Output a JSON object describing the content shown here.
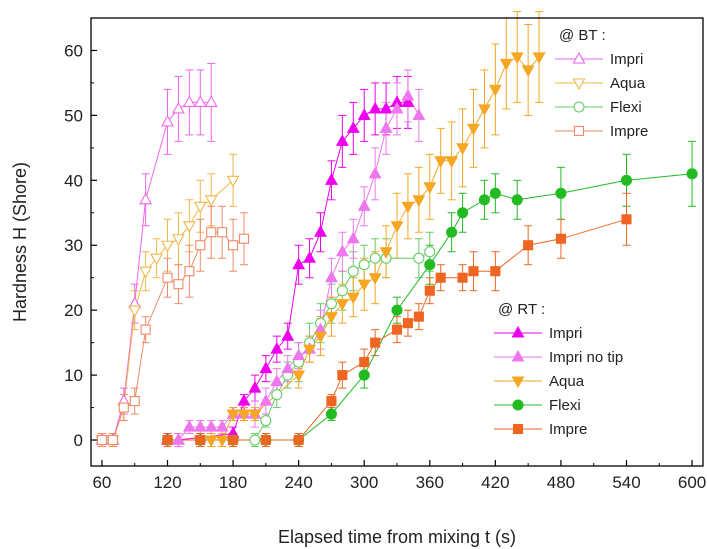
{
  "chart_data": {
    "type": "scatter",
    "xlabel": "Elapsed time from mixing t (s)",
    "ylabel": "Hardness H (Shore)",
    "xlim": [
      50,
      610
    ],
    "ylim": [
      -4,
      65
    ],
    "xticks": [
      60,
      120,
      180,
      240,
      300,
      360,
      420,
      480,
      540,
      600
    ],
    "yticks": [
      0,
      10,
      20,
      30,
      40,
      50,
      60
    ],
    "grid": false,
    "legends": [
      {
        "title": "@ BT :",
        "placement": "top-right",
        "entries": [
          "Impri",
          "Aqua",
          "Flexi",
          "Impre"
        ]
      },
      {
        "title": "@ RT :",
        "placement": "bottom-right",
        "entries": [
          "Impri",
          "Impri no tip",
          "Aqua",
          "Flexi",
          "Impre"
        ]
      }
    ],
    "series": [
      {
        "name": "Impri",
        "group": "@ BT :",
        "color": "#ee66ee",
        "marker": "triangle-up",
        "filled": false,
        "x": [
          60,
          70,
          80,
          90,
          100,
          120,
          130,
          140,
          150,
          160
        ],
        "y": [
          0,
          0,
          6,
          21,
          37,
          49,
          51,
          52,
          52,
          52
        ],
        "err": [
          1,
          1,
          2,
          3,
          4,
          5,
          5,
          5,
          5,
          6
        ]
      },
      {
        "name": "Aqua",
        "group": "@ BT :",
        "color": "#f0b84a",
        "marker": "triangle-down",
        "filled": false,
        "x": [
          60,
          70,
          80,
          90,
          100,
          110,
          120,
          130,
          140,
          150,
          160,
          180
        ],
        "y": [
          0,
          0,
          5,
          20,
          26,
          28,
          30,
          31,
          33,
          36,
          37,
          40
        ],
        "err": [
          1,
          1,
          2,
          3,
          3,
          3,
          4,
          4,
          4,
          4,
          4,
          4
        ]
      },
      {
        "name": "Flexi",
        "group": "@ BT :",
        "color": "#66cc66",
        "marker": "circle",
        "filled": false,
        "x": [
          200,
          210,
          220,
          230,
          240,
          250,
          260,
          270,
          280,
          290,
          300,
          310,
          320,
          350,
          360
        ],
        "y": [
          0,
          3,
          7,
          10,
          12,
          15,
          18,
          21,
          23,
          26,
          27,
          28,
          28,
          28,
          29
        ],
        "err": [
          1,
          1,
          2,
          2,
          3,
          3,
          3,
          3,
          3,
          3,
          3,
          3,
          3,
          3,
          3
        ]
      },
      {
        "name": "Impre",
        "group": "@ BT :",
        "color": "#f08a66",
        "marker": "square",
        "filled": false,
        "x": [
          60,
          70,
          80,
          90,
          100,
          120,
          130,
          140,
          150,
          160,
          170,
          180,
          190
        ],
        "y": [
          0,
          0,
          5,
          6,
          17,
          25,
          24,
          26,
          30,
          32,
          32,
          30,
          31
        ],
        "err": [
          1,
          1,
          2,
          2,
          2,
          3,
          3,
          4,
          4,
          4,
          4,
          4,
          4
        ]
      },
      {
        "name": "Impri",
        "group": "@ RT :",
        "color": "#ee00ee",
        "marker": "triangle-up",
        "filled": true,
        "x": [
          120,
          130,
          180,
          190,
          200,
          210,
          220,
          230,
          240,
          250,
          260,
          270,
          280,
          290,
          300,
          310,
          320,
          330,
          340
        ],
        "y": [
          0,
          0,
          1,
          6,
          8,
          11,
          14,
          16,
          27,
          28,
          32,
          40,
          46,
          48,
          50,
          51,
          51,
          52,
          52
        ],
        "err": [
          1,
          1,
          1,
          1,
          2,
          2,
          2,
          2,
          3,
          3,
          3,
          3,
          4,
          4,
          4,
          4,
          4,
          4,
          4
        ]
      },
      {
        "name": "Impri no tip",
        "group": "@ RT :",
        "color": "#ee77ee",
        "marker": "triangle-up",
        "filled": true,
        "x": [
          130,
          140,
          150,
          160,
          170,
          180,
          190,
          200,
          210,
          220,
          230,
          240,
          250,
          260,
          270,
          280,
          290,
          300,
          310,
          320,
          330,
          340,
          350
        ],
        "y": [
          0,
          2,
          2,
          2,
          2,
          4,
          4,
          4,
          6,
          9,
          11,
          13,
          14,
          17,
          25,
          29,
          31,
          36,
          41,
          48,
          51,
          53,
          50
        ],
        "err": [
          1,
          1,
          1,
          1,
          1,
          1,
          1,
          2,
          2,
          2,
          2,
          2,
          2,
          3,
          3,
          3,
          3,
          3,
          4,
          4,
          4,
          4,
          4
        ]
      },
      {
        "name": "Aqua",
        "group": "@ RT :",
        "color": "#f5a623",
        "marker": "triangle-down",
        "filled": true,
        "x": [
          150,
          160,
          170,
          180,
          190,
          200,
          240,
          250,
          260,
          270,
          280,
          290,
          300,
          310,
          320,
          330,
          340,
          350,
          360,
          370,
          380,
          390,
          400,
          410,
          420,
          430,
          440,
          450,
          460
        ],
        "y": [
          0,
          0,
          0,
          4,
          4,
          4,
          10,
          14,
          16,
          19,
          21,
          22,
          24,
          25,
          29,
          33,
          36,
          37,
          39,
          43,
          43,
          45,
          48,
          51,
          54,
          58,
          59,
          57,
          59
        ],
        "err": [
          1,
          1,
          1,
          1,
          1,
          1,
          2,
          2,
          3,
          3,
          3,
          3,
          4,
          4,
          4,
          5,
          5,
          5,
          5,
          5,
          6,
          6,
          6,
          6,
          7,
          7,
          7,
          7,
          7
        ]
      },
      {
        "name": "Flexi",
        "group": "@ RT :",
        "color": "#22bb22",
        "marker": "circle",
        "filled": true,
        "x": [
          120,
          150,
          180,
          210,
          240,
          270,
          300,
          330,
          360,
          380,
          390,
          410,
          420,
          440,
          480,
          540,
          600
        ],
        "y": [
          0,
          0,
          0,
          0,
          0,
          4,
          10,
          20,
          27,
          32,
          35,
          37,
          38,
          37,
          38,
          40,
          41
        ],
        "err": [
          1,
          1,
          1,
          1,
          1,
          1,
          2,
          2,
          3,
          3,
          3,
          3,
          3,
          3,
          4,
          4,
          5
        ]
      },
      {
        "name": "Impre",
        "group": "@ RT :",
        "color": "#ee6622",
        "marker": "square",
        "filled": true,
        "x": [
          120,
          150,
          180,
          210,
          240,
          270,
          280,
          300,
          310,
          330,
          340,
          350,
          360,
          370,
          390,
          400,
          420,
          450,
          480,
          540
        ],
        "y": [
          0,
          0,
          0,
          0,
          0,
          6,
          10,
          12,
          15,
          17,
          18,
          19,
          23,
          25,
          25,
          26,
          26,
          30,
          31,
          34
        ],
        "err": [
          1,
          1,
          1,
          1,
          1,
          1,
          2,
          2,
          2,
          2,
          2,
          2,
          2,
          2,
          2,
          3,
          3,
          3,
          3,
          4
        ]
      }
    ]
  }
}
